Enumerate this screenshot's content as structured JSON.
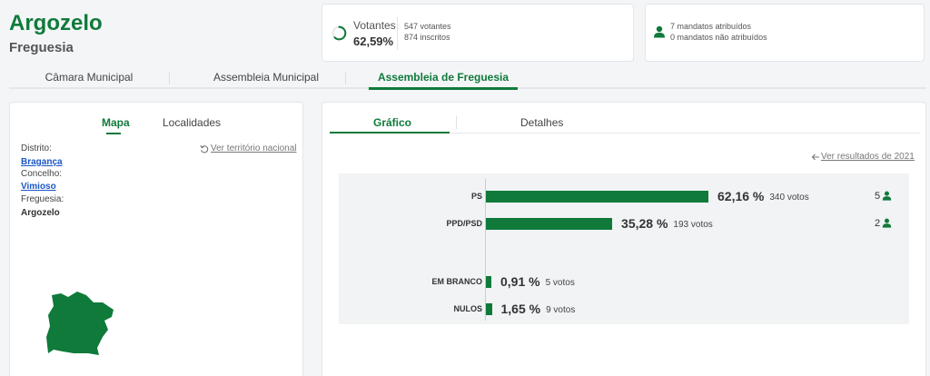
{
  "header": {
    "title": "Argozelo",
    "subtitle": "Freguesia"
  },
  "votantes": {
    "label": "Votantes",
    "percent": "62,59%",
    "voters": "547 votantes",
    "registered": "874 inscritos",
    "progress": 0.6259
  },
  "mandatos": {
    "assigned": "7 mandatos atribuídos",
    "unassigned": "0 mandatos não atribuídos"
  },
  "main_tabs": [
    {
      "label": "Câmara Municipal"
    },
    {
      "label": "Assembleia Municipal"
    },
    {
      "label": "Assembleia de Freguesia"
    }
  ],
  "left": {
    "tabs": [
      {
        "label": "Mapa"
      },
      {
        "label": "Localidades"
      }
    ],
    "national_link": "Ver território nacional",
    "distrito_label": "Distrito:",
    "distrito": "Bragança",
    "concelho_label": "Concelho:",
    "concelho": "Vimioso",
    "freguesia_label": "Freguesia:",
    "freguesia": "Argozelo"
  },
  "right": {
    "tabs": [
      {
        "label": "Gráfico"
      },
      {
        "label": "Detalhes"
      }
    ],
    "results_link": "Ver resultados de 2021"
  },
  "chart_data": {
    "type": "bar",
    "categories": [
      "PS",
      "PPD/PSD",
      "EM BRANCO",
      "NULOS"
    ],
    "values": [
      62.16,
      35.28,
      0.91,
      1.65
    ],
    "pct_labels": [
      "62,16 %",
      "35,28 %",
      "0,91 %",
      "1,65 %"
    ],
    "votes": [
      "340 votos",
      "193 votos",
      "5 votos",
      "9 votos"
    ],
    "seats": [
      "5",
      "2",
      "",
      ""
    ]
  },
  "colors": {
    "accent": "#0f7a3a",
    "link": "#1a56c4"
  }
}
